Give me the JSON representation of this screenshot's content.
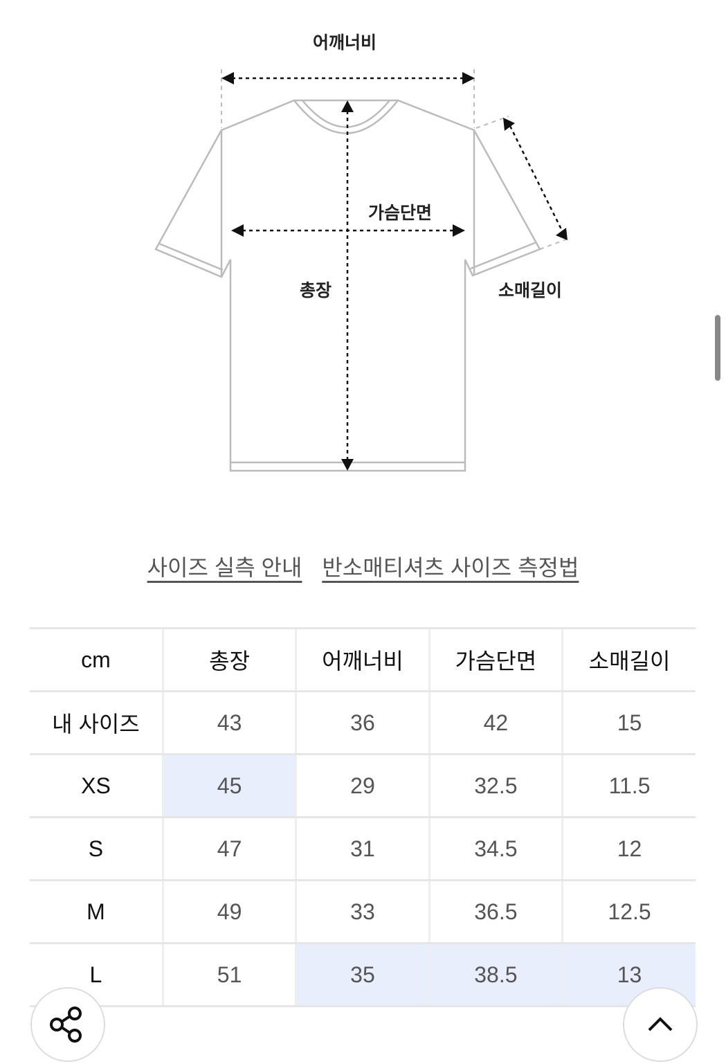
{
  "diagram": {
    "shoulder_label": "어깨너비",
    "chest_label": "가슴단면",
    "length_label": "총장",
    "sleeve_label": "소매길이"
  },
  "links": [
    {
      "label": "사이즈 실측 안내"
    },
    {
      "label": "반소매티셔츠 사이즈 측정법"
    }
  ],
  "table": {
    "headers": [
      "cm",
      "총장",
      "어깨너비",
      "가슴단면",
      "소매길이"
    ],
    "rows": [
      {
        "label": "내 사이즈",
        "values": [
          "43",
          "36",
          "42",
          "15"
        ],
        "highlight": []
      },
      {
        "label": "XS",
        "values": [
          "45",
          "29",
          "32.5",
          "11.5"
        ],
        "highlight": [
          0
        ]
      },
      {
        "label": "S",
        "values": [
          "47",
          "31",
          "34.5",
          "12"
        ],
        "highlight": []
      },
      {
        "label": "M",
        "values": [
          "49",
          "33",
          "36.5",
          "12.5"
        ],
        "highlight": []
      },
      {
        "label": "L",
        "values": [
          "51",
          "35",
          "38.5",
          "13"
        ],
        "highlight": [
          1,
          2,
          3
        ]
      }
    ],
    "highlight_color": "#e8eefc"
  },
  "fab": {
    "share_icon": "share-icon",
    "top_icon": "chevron-up-icon"
  }
}
